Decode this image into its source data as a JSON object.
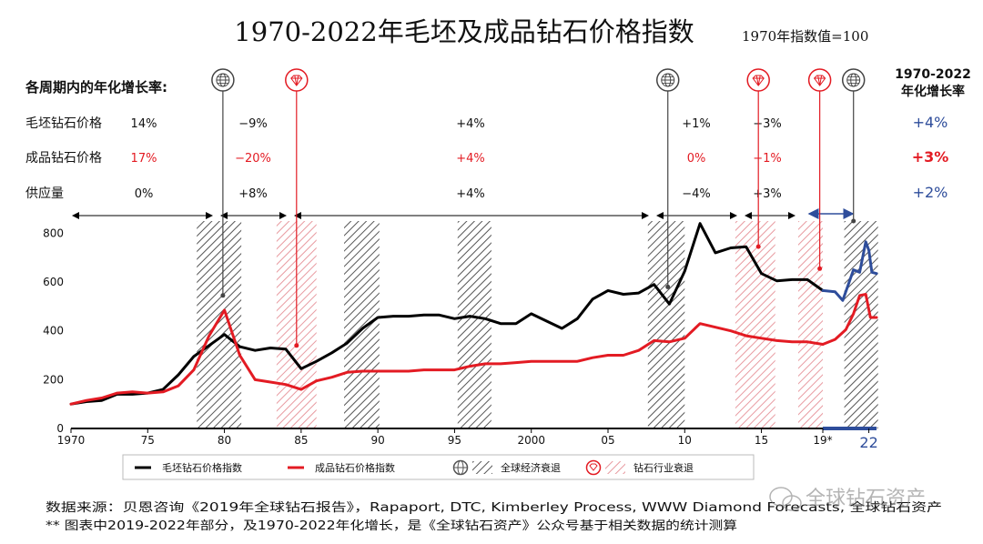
{
  "chart_data": {
    "type": "line",
    "title": "1970-2022年毛坯及成品钻石价格指数",
    "subtitle": "1970年指数值=100",
    "rates_heading": "各周期内的年化增长率:",
    "overall_heading_1": "1970-2022",
    "overall_heading_2": "年化增长率",
    "row_labels": [
      "毛坯钻石价格",
      "成品钻石价格",
      "供应量"
    ],
    "rates": {
      "rough": [
        "14%",
        "−9%",
        "+4%",
        "+1%",
        "−3%"
      ],
      "polished": [
        "17%",
        "−20%",
        "+4%",
        "0%",
        "−1%"
      ],
      "supply": [
        "0%",
        "+8%",
        "+4%",
        "−4%",
        "+3%"
      ]
    },
    "overall": {
      "rough": "+4%",
      "polished": "+3%",
      "supply": "+2%"
    },
    "y_ticks": [
      "0",
      "200",
      "400",
      "600",
      "800"
    ],
    "ylim": [
      0,
      850
    ],
    "xlim": [
      1970,
      2022.5
    ],
    "x_ticks": [
      {
        "year": 1970,
        "label": "1970"
      },
      {
        "year": 1975,
        "label": "75"
      },
      {
        "year": 1980,
        "label": "80"
      },
      {
        "year": 1985,
        "label": "85"
      },
      {
        "year": 1990,
        "label": "90"
      },
      {
        "year": 1995,
        "label": "95"
      },
      {
        "year": 2000,
        "label": "2000"
      },
      {
        "year": 2005,
        "label": "05"
      },
      {
        "year": 2010,
        "label": "10"
      },
      {
        "year": 2015,
        "label": "15"
      },
      {
        "year": 2019,
        "label": "19*"
      },
      {
        "year": 2022,
        "label": "22"
      }
    ],
    "global_recessions": [
      [
        1978.2,
        1981.1
      ],
      [
        1987.8,
        1990.1
      ],
      [
        1995.2,
        1997.4
      ],
      [
        2007.6,
        2010.0
      ],
      [
        2020.4,
        2022.6
      ]
    ],
    "industry_recessions": [
      [
        1983.4,
        1986.0
      ],
      [
        2013.3,
        2015.9
      ],
      [
        2017.4,
        2019.0
      ]
    ],
    "markers": [
      {
        "type": "global",
        "year": 1979.9,
        "value": 545
      },
      {
        "type": "industry",
        "year": 1984.7,
        "value": 340
      },
      {
        "type": "global",
        "year": 2008.9,
        "value": 580
      },
      {
        "type": "industry",
        "year": 2014.8,
        "value": 745
      },
      {
        "type": "industry",
        "year": 2018.8,
        "value": 655
      },
      {
        "type": "global",
        "year": 2021.0,
        "value": 850
      }
    ],
    "series": [
      {
        "name": "毛坯钻石价格指数",
        "color": "#000000",
        "x": [
          1970,
          1971,
          1972,
          1973,
          1974,
          1975,
          1976,
          1977,
          1978,
          1979,
          1980,
          1981,
          1982,
          1983,
          1984,
          1985,
          1986,
          1987,
          1988,
          1989,
          1990,
          1991,
          1992,
          1993,
          1994,
          1995,
          1996,
          1997,
          1998,
          1999,
          2000,
          2001,
          2002,
          2003,
          2004,
          2005,
          2006,
          2007,
          2008,
          2009,
          2010,
          2011,
          2012,
          2013,
          2014,
          2015,
          2016,
          2017,
          2018,
          2019
        ],
        "values": [
          100,
          110,
          115,
          140,
          140,
          145,
          160,
          220,
          295,
          340,
          385,
          335,
          320,
          330,
          325,
          245,
          275,
          310,
          350,
          410,
          455,
          460,
          460,
          465,
          465,
          450,
          460,
          450,
          430,
          430,
          470,
          440,
          410,
          450,
          530,
          565,
          550,
          555,
          590,
          510,
          645,
          840,
          720,
          740,
          745,
          635,
          605,
          610,
          610,
          565
        ]
      },
      {
        "name": "毛坯钻石价格指数 (2019-2022)",
        "color": "#2e4d9b",
        "x": [
          2019,
          2019.8,
          2020.3,
          2021,
          2021.4,
          2021.8,
          2022,
          2022.2,
          2022.5
        ],
        "values": [
          565,
          560,
          525,
          650,
          640,
          765,
          730,
          640,
          635
        ]
      },
      {
        "name": "成品钻石价格指数",
        "color": "#e31b23",
        "x": [
          1970,
          1971,
          1972,
          1973,
          1974,
          1975,
          1976,
          1977,
          1978,
          1979,
          1980,
          1981,
          1982,
          1983,
          1984,
          1985,
          1986,
          1987,
          1988,
          1989,
          1990,
          1991,
          1992,
          1993,
          1994,
          1995,
          1996,
          1997,
          1998,
          1999,
          2000,
          2001,
          2002,
          2003,
          2004,
          2005,
          2006,
          2007,
          2008,
          2009,
          2010,
          2011,
          2012,
          2013,
          2014,
          2015,
          2016,
          2017,
          2018,
          2019
        ],
        "values": [
          100,
          115,
          125,
          145,
          150,
          145,
          150,
          175,
          240,
          380,
          485,
          300,
          200,
          190,
          180,
          160,
          195,
          210,
          230,
          235,
          235,
          235,
          235,
          240,
          240,
          240,
          255,
          265,
          265,
          270,
          275,
          275,
          275,
          275,
          290,
          300,
          300,
          320,
          360,
          355,
          370,
          430,
          415,
          400,
          380,
          370,
          360,
          355,
          355,
          345
        ]
      },
      {
        "name": "成品钻石价格指数 (2019-2022)",
        "color": "#e31b23",
        "x": [
          2019,
          2019.8,
          2020.5,
          2021,
          2021.4,
          2021.8,
          2022.1,
          2022.5
        ],
        "values": [
          345,
          365,
          405,
          470,
          545,
          550,
          455,
          455
        ]
      }
    ],
    "legend": {
      "rough": "毛坯钻石价格指数",
      "polished": "成品钻石价格指数",
      "global": "全球经济衰退",
      "industry": "钻石行业衰退"
    },
    "footnote_1": "数据来源：贝恩咨询《2019年全球钻石报告》，Rapaport, DTC, Kimberley Process, WWW Diamond Forecasts, 全球钻石资产",
    "footnote_2": "** 图表中2019-2022年部分，及1970-2022年化增长，是《全球钻石资产》公众号基于相关数据的统计测算",
    "watermark": "全球钻石资产",
    "colors": {
      "rough": "#000000",
      "polished": "#e31b23",
      "projection": "#2e4d9b",
      "global_hatch": "#555555",
      "industry_hatch": "#e89aa0"
    }
  }
}
